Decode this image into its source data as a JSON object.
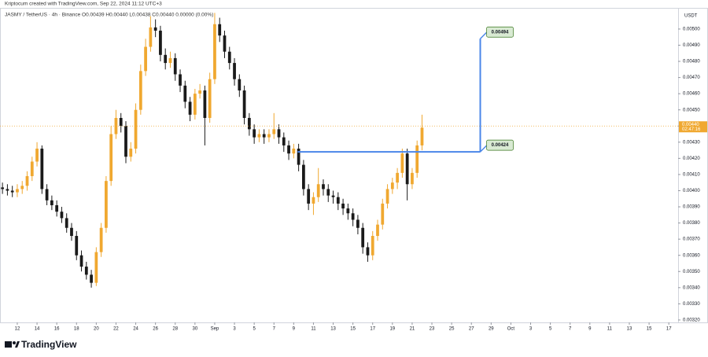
{
  "chart_data": {
    "type": "candlestick",
    "header": "Kriptocum created with TradingView.com, Sep 22, 2024 11:12 UTC+3",
    "symbol_line": "JASMY / TetherUS · 4h · Binance  O0.00439 H0.00440 L0.00438 C0.00440 0.00000 (0.00%)",
    "currency": "USDT",
    "brand": "TradingView",
    "up_color": "#f0a830",
    "down_color": "#1a1a1a",
    "x": [
      10.5,
      11,
      11.5,
      12,
      12.5,
      13,
      13.5,
      14,
      14.5,
      15,
      15.5,
      16,
      16.5,
      17,
      17.5,
      18,
      18.5,
      19,
      19.5,
      20,
      20.5,
      21,
      21.5,
      22,
      22.5,
      23,
      23.5,
      24,
      24.5,
      25,
      25.5,
      26,
      26.5,
      27,
      27.5,
      28,
      28.5,
      29,
      29.5,
      30,
      30.5,
      31,
      31.5,
      32,
      32.5,
      33,
      33.5,
      34,
      34.5,
      35,
      35.5,
      36,
      36.5,
      37,
      37.5,
      38,
      38.5,
      39,
      39.5,
      40,
      40.5,
      41,
      41.5,
      42,
      42.5,
      43,
      43.5,
      44,
      44.5,
      45,
      45.5,
      46,
      46.5,
      47,
      47.5,
      48,
      48.5,
      49,
      49.5,
      50,
      50.5,
      51,
      51.5,
      52,
      52.5,
      53
    ],
    "open": [
      0.00402,
      0.00401,
      0.004,
      0.00399,
      0.00401,
      0.00403,
      0.00409,
      0.00418,
      0.00426,
      0.00401,
      0.00394,
      0.00391,
      0.00387,
      0.00383,
      0.00377,
      0.00372,
      0.0036,
      0.00353,
      0.00348,
      0.00343,
      0.00362,
      0.00377,
      0.00406,
      0.00435,
      0.00445,
      0.0044,
      0.00421,
      0.00426,
      0.0045,
      0.00474,
      0.00489,
      0.00501,
      0.00499,
      0.00484,
      0.00479,
      0.00482,
      0.00472,
      0.00465,
      0.00455,
      0.00447,
      0.0046,
      0.00462,
      0.00445,
      0.00469,
      0.00503,
      0.00496,
      0.00486,
      0.00479,
      0.00469,
      0.00462,
      0.00445,
      0.00438,
      0.00433,
      0.00435,
      0.00433,
      0.00435,
      0.00438,
      0.00433,
      0.00428,
      0.00423,
      0.00426,
      0.00416,
      0.00401,
      0.00392,
      0.00396,
      0.00404,
      0.00401,
      0.00397,
      0.00396,
      0.00392,
      0.00389,
      0.00386,
      0.00382,
      0.00377,
      0.00365,
      0.0036,
      0.00372,
      0.00379,
      0.00392,
      0.00401,
      0.00405,
      0.00411,
      0.00423,
      0.00404,
      0.00411,
      0.00428
    ],
    "high": [
      0.00405,
      0.00404,
      0.00403,
      0.00404,
      0.00406,
      0.00412,
      0.00421,
      0.0043,
      0.00428,
      0.00404,
      0.00397,
      0.00394,
      0.0039,
      0.00386,
      0.0038,
      0.00375,
      0.00363,
      0.00356,
      0.00351,
      0.00365,
      0.0038,
      0.00409,
      0.0044,
      0.0045,
      0.00448,
      0.00443,
      0.0043,
      0.00454,
      0.00478,
      0.00494,
      0.00508,
      0.00506,
      0.00502,
      0.00488,
      0.00486,
      0.00485,
      0.00475,
      0.00468,
      0.00458,
      0.00463,
      0.00466,
      0.00465,
      0.00473,
      0.0051,
      0.00507,
      0.00499,
      0.00489,
      0.00482,
      0.00472,
      0.00465,
      0.00448,
      0.00441,
      0.00438,
      0.00438,
      0.00438,
      0.00448,
      0.00441,
      0.00436,
      0.00431,
      0.00429,
      0.00429,
      0.00419,
      0.00404,
      0.00399,
      0.00414,
      0.00407,
      0.00404,
      0.004,
      0.00399,
      0.00395,
      0.00392,
      0.00389,
      0.00385,
      0.0038,
      0.00368,
      0.00375,
      0.00382,
      0.00395,
      0.00404,
      0.00408,
      0.00414,
      0.00426,
      0.00426,
      0.00414,
      0.00431,
      0.00447
    ],
    "low": [
      0.00398,
      0.00397,
      0.00396,
      0.00396,
      0.00398,
      0.004,
      0.00406,
      0.00415,
      0.00398,
      0.00391,
      0.00388,
      0.00384,
      0.0038,
      0.00374,
      0.00369,
      0.00357,
      0.0035,
      0.00345,
      0.0034,
      0.00341,
      0.00359,
      0.00374,
      0.00403,
      0.00432,
      0.00436,
      0.00417,
      0.00418,
      0.00423,
      0.00447,
      0.00471,
      0.00486,
      0.00495,
      0.0048,
      0.00475,
      0.00476,
      0.00468,
      0.00461,
      0.00451,
      0.00443,
      0.00444,
      0.00457,
      0.00428,
      0.00442,
      0.00466,
      0.00492,
      0.00482,
      0.00475,
      0.00465,
      0.00458,
      0.00441,
      0.00434,
      0.00429,
      0.0043,
      0.00429,
      0.0043,
      0.00432,
      0.00429,
      0.00424,
      0.00419,
      0.0042,
      0.00412,
      0.00397,
      0.00388,
      0.00385,
      0.00393,
      0.00397,
      0.00393,
      0.00392,
      0.00388,
      0.00385,
      0.00382,
      0.00378,
      0.00373,
      0.00361,
      0.00356,
      0.00357,
      0.00369,
      0.00376,
      0.00389,
      0.00398,
      0.00401,
      0.00408,
      0.00394,
      0.00401,
      0.00408,
      0.00425
    ],
    "close": [
      0.00401,
      0.004,
      0.00399,
      0.00401,
      0.00403,
      0.00409,
      0.00418,
      0.00426,
      0.00401,
      0.00394,
      0.00391,
      0.00387,
      0.00383,
      0.00377,
      0.00372,
      0.0036,
      0.00353,
      0.00348,
      0.00343,
      0.00362,
      0.00377,
      0.00406,
      0.00435,
      0.00445,
      0.0044,
      0.00421,
      0.00426,
      0.0045,
      0.00474,
      0.00489,
      0.00501,
      0.00499,
      0.00484,
      0.00479,
      0.00482,
      0.00472,
      0.00465,
      0.00455,
      0.00447,
      0.0046,
      0.00462,
      0.00445,
      0.00469,
      0.00503,
      0.00496,
      0.00486,
      0.00479,
      0.00469,
      0.00462,
      0.00445,
      0.00438,
      0.00433,
      0.00435,
      0.00433,
      0.00435,
      0.00438,
      0.00433,
      0.00428,
      0.00423,
      0.00426,
      0.00416,
      0.00401,
      0.00392,
      0.00396,
      0.00404,
      0.00401,
      0.00397,
      0.00396,
      0.00392,
      0.00389,
      0.00386,
      0.00382,
      0.00377,
      0.00365,
      0.0036,
      0.00372,
      0.00379,
      0.00392,
      0.00401,
      0.00405,
      0.00411,
      0.00423,
      0.00404,
      0.00411,
      0.00428,
      0.00439
    ],
    "xlim": [
      10.25,
      78.94
    ],
    "xticks": [
      12,
      14,
      16,
      18,
      20,
      22,
      24,
      26,
      28,
      30,
      {
        "value": 32,
        "label": "Sep"
      },
      {
        "value": 34,
        "label": "3"
      },
      {
        "value": 36,
        "label": "5"
      },
      {
        "value": 38,
        "label": "7"
      },
      {
        "value": 40,
        "label": "9"
      },
      {
        "value": 42,
        "label": "11"
      },
      {
        "value": 44,
        "label": "13"
      },
      {
        "value": 46,
        "label": "15"
      },
      {
        "value": 48,
        "label": "17"
      },
      {
        "value": 50,
        "label": "19"
      },
      {
        "value": 52,
        "label": "21"
      },
      {
        "value": 54,
        "label": "23"
      },
      {
        "value": 56,
        "label": "25"
      },
      {
        "value": 58,
        "label": "27"
      },
      {
        "value": 60,
        "label": "29"
      },
      {
        "value": 62,
        "label": "Oct"
      },
      {
        "value": 64,
        "label": "3"
      },
      {
        "value": 66,
        "label": "5"
      },
      {
        "value": 68,
        "label": "7"
      },
      {
        "value": 70,
        "label": "9"
      },
      {
        "value": 72,
        "label": "11"
      },
      {
        "value": 74,
        "label": "13"
      },
      {
        "value": 76,
        "label": "15"
      },
      {
        "value": 78,
        "label": "17"
      }
    ],
    "ylim": [
      0.003185,
      0.005131
    ],
    "yticks": [
      {
        "value": 0.0032,
        "label": "0.00320"
      },
      {
        "value": 0.0033,
        "label": "0.00330"
      },
      {
        "value": 0.0034,
        "label": "0.00340"
      },
      {
        "value": 0.0035,
        "label": "0.00350"
      },
      {
        "value": 0.0036,
        "label": "0.00360"
      },
      {
        "value": 0.0037,
        "label": "0.00370"
      },
      {
        "value": 0.0038,
        "label": "0.00380"
      },
      {
        "value": 0.0039,
        "label": "0.00390"
      },
      {
        "value": 0.004,
        "label": "0.00400"
      },
      {
        "value": 0.0041,
        "label": "0.00410"
      },
      {
        "value": 0.0042,
        "label": "0.00420"
      },
      {
        "value": 0.0043,
        "label": "0.00430"
      },
      {
        "value": 0.0044,
        "label": "0.00440"
      },
      {
        "value": 0.0045,
        "label": "0.00450"
      },
      {
        "value": 0.0046,
        "label": "0.00460"
      },
      {
        "value": 0.0047,
        "label": "0.00470"
      },
      {
        "value": 0.0048,
        "label": "0.00480"
      },
      {
        "value": 0.0049,
        "label": "0.00490"
      },
      {
        "value": 0.005,
        "label": "0.00500"
      }
    ],
    "grid": false,
    "current_price": {
      "value": 0.0044,
      "label": "0.00440",
      "countdown": "02:47:16",
      "color": "#f0a830"
    },
    "projection": {
      "color": "#4a86e8",
      "start_x": 40.4,
      "turn_x": 58.9,
      "from": {
        "value": 0.00424,
        "label": "0.00424"
      },
      "to": {
        "value": 0.00494,
        "label": "0.00494"
      }
    }
  }
}
